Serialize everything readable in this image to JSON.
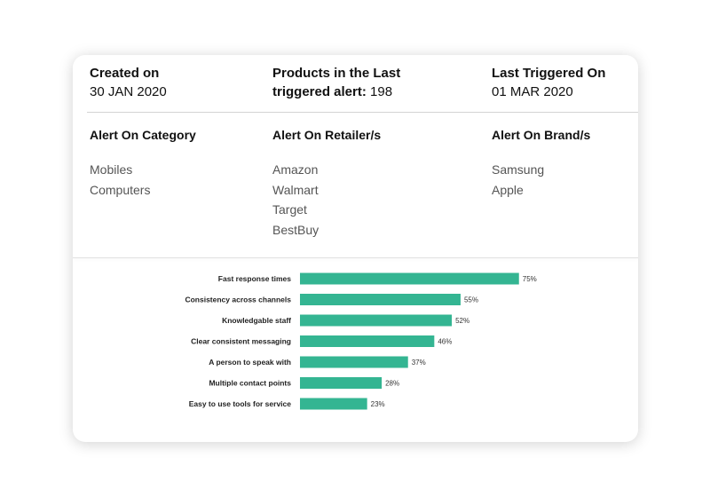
{
  "summary": {
    "created": {
      "label": "Created on",
      "value": "30 JAN 2020"
    },
    "products": {
      "label_line1": "Products in the Last",
      "label_line2": "triggered alert:",
      "value": "198"
    },
    "last_triggered": {
      "label": "Last Triggered On",
      "value": "01 MAR 2020"
    }
  },
  "alerts": {
    "category": {
      "label": "Alert On Category",
      "items": [
        "Mobiles",
        "Computers"
      ]
    },
    "retailer": {
      "label": "Alert On Retailer/s",
      "items": [
        "Amazon",
        "Walmart",
        "Target",
        "BestBuy"
      ]
    },
    "brand": {
      "label": "Alert On Brand/s",
      "items": [
        "Samsung",
        "Apple"
      ]
    }
  },
  "colors": {
    "bar": "#34b592"
  },
  "chart_data": {
    "type": "bar",
    "orientation": "horizontal",
    "categories": [
      "Fast response times",
      "Consistency across channels",
      "Knowledgable staff",
      "Clear consistent messaging",
      "A person to speak with",
      "Multiple contact points",
      "Easy to use tools for service"
    ],
    "values": [
      75,
      55,
      52,
      46,
      37,
      28,
      23
    ],
    "value_labels": [
      "75%",
      "55%",
      "52%",
      "46%",
      "37%",
      "28%",
      "23%"
    ],
    "xlim": [
      0,
      100
    ],
    "grid": false
  }
}
